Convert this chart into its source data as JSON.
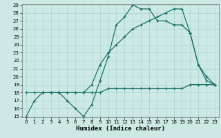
{
  "title": "",
  "xlabel": "Humidex (Indice chaleur)",
  "bg_color": "#cce9e5",
  "grid_color": "#aad4ce",
  "line_color": "#1a7068",
  "ylim": [
    15,
    29
  ],
  "xlim": [
    -0.5,
    23.5
  ],
  "yticks": [
    15,
    16,
    17,
    18,
    19,
    20,
    21,
    22,
    23,
    24,
    25,
    26,
    27,
    28,
    29
  ],
  "xticks": [
    0,
    1,
    2,
    3,
    4,
    5,
    6,
    7,
    8,
    9,
    10,
    11,
    12,
    13,
    14,
    15,
    16,
    17,
    18,
    19,
    20,
    21,
    22,
    23
  ],
  "line1_x": [
    0,
    1,
    2,
    3,
    4,
    5,
    6,
    7,
    8,
    9,
    10,
    11,
    12,
    13,
    14,
    15,
    16,
    17,
    18,
    19,
    20,
    21,
    22,
    23
  ],
  "line1_y": [
    15,
    17,
    18,
    18,
    18,
    17,
    16,
    15,
    16.5,
    19.5,
    22.5,
    26.5,
    27.5,
    29,
    28.5,
    28.5,
    27,
    27,
    26.5,
    26.5,
    25.5,
    21.5,
    19.5,
    19
  ],
  "line2_x": [
    0,
    1,
    2,
    3,
    4,
    5,
    6,
    7,
    8,
    9,
    10,
    11,
    12,
    13,
    14,
    15,
    16,
    17,
    18,
    19,
    20,
    21,
    22,
    23
  ],
  "line2_y": [
    18,
    18,
    18,
    18,
    18,
    18,
    18,
    18,
    18,
    18,
    18.5,
    18.5,
    18.5,
    18.5,
    18.5,
    18.5,
    18.5,
    18.5,
    18.5,
    18.5,
    19,
    19,
    19,
    19
  ],
  "line3_x": [
    2,
    3,
    4,
    5,
    6,
    7,
    8,
    9,
    10,
    11,
    12,
    13,
    14,
    15,
    16,
    17,
    18,
    19,
    20,
    21,
    22,
    23
  ],
  "line3_y": [
    18,
    18,
    18,
    18,
    18,
    18,
    19,
    21.5,
    23,
    24,
    25,
    26,
    26.5,
    27,
    27.5,
    28,
    28.5,
    28.5,
    25.5,
    21.5,
    20,
    19
  ],
  "marker": "+",
  "markersize": 3.5,
  "linewidth": 0.9,
  "tick_fontsize": 5,
  "xlabel_fontsize": 6.5,
  "xlabel_fontweight": "bold"
}
